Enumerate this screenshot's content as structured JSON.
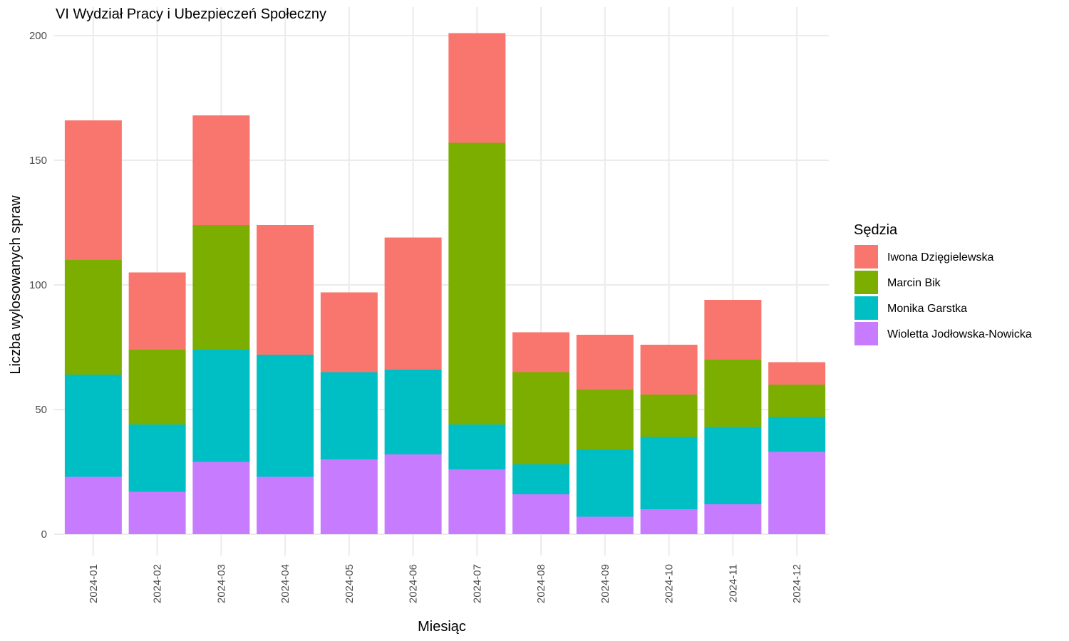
{
  "chart_data": {
    "type": "bar",
    "stacked": true,
    "title": "VI Wydział Pracy i Ubezpieczeń Społeczny",
    "xlabel": "Miesiąc",
    "ylabel": "Liczba wylosowanych spraw",
    "ylim": [
      0,
      210
    ],
    "yticks": [
      0,
      50,
      100,
      150,
      200
    ],
    "grid": true,
    "legend": {
      "title": "Sędzia",
      "position": "right"
    },
    "categories": [
      "2024-01",
      "2024-02",
      "2024-03",
      "2024-04",
      "2024-05",
      "2024-06",
      "2024-07",
      "2024-08",
      "2024-09",
      "2024-10",
      "2024-11",
      "2024-12"
    ],
    "series": [
      {
        "name": "Iwona Dzięgielewska",
        "color": "#F8766D",
        "values": [
          56,
          31,
          44,
          52,
          32,
          53,
          44,
          16,
          22,
          20,
          24,
          9
        ]
      },
      {
        "name": "Marcin Bik",
        "color": "#7CAE00",
        "values": [
          46,
          30,
          50,
          0,
          0,
          0,
          113,
          37,
          24,
          17,
          27,
          13
        ]
      },
      {
        "name": "Monika Garstka",
        "color": "#00BFC4",
        "values": [
          41,
          27,
          45,
          49,
          35,
          34,
          18,
          12,
          27,
          29,
          31,
          14
        ]
      },
      {
        "name": "Wioletta Jodłowska-Nowicka",
        "color": "#C77CFF",
        "values": [
          23,
          17,
          29,
          23,
          30,
          32,
          26,
          16,
          7,
          10,
          12,
          33
        ]
      }
    ]
  }
}
